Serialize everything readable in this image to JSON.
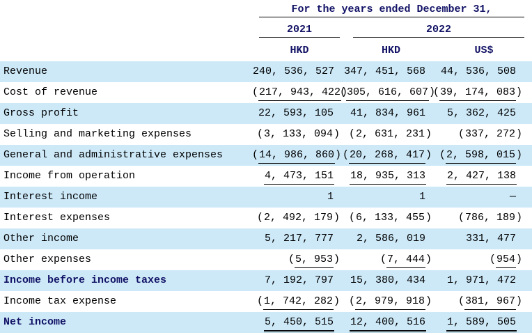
{
  "header": {
    "title": "For the years ended December 31,",
    "years": [
      "2021",
      "2022"
    ],
    "currencies": [
      "HKD",
      "HKD",
      "US$"
    ]
  },
  "table": {
    "rows": [
      {
        "label": "Revenue",
        "values": [
          "240, 536, 527",
          "347, 451, 568",
          "44, 536, 508"
        ],
        "bold": false,
        "underline": "none"
      },
      {
        "label": "Cost of revenue",
        "values": [
          "(217, 943, 422)",
          "(305, 616, 607)",
          "(39, 174, 083)"
        ],
        "bold": false,
        "underline": "single"
      },
      {
        "label": "Gross profit",
        "values": [
          "22, 593, 105",
          "41, 834, 961",
          "5, 362, 425"
        ],
        "bold": false,
        "underline": "none"
      },
      {
        "label": "Selling and marketing expenses",
        "values": [
          "(3, 133, 094)",
          "(2, 631, 231)",
          "(337, 272)"
        ],
        "bold": false,
        "underline": "none"
      },
      {
        "label": "General and administrative expenses",
        "values": [
          "(14, 986, 860)",
          "(20, 268, 417)",
          "(2, 598, 015)"
        ],
        "bold": false,
        "underline": "single"
      },
      {
        "label": "Income from operation",
        "values": [
          "4, 473, 151",
          "18, 935, 313",
          "2, 427, 138"
        ],
        "bold": false,
        "underline": "single"
      },
      {
        "label": "Interest income",
        "values": [
          "1",
          "1",
          "—"
        ],
        "bold": false,
        "underline": "none"
      },
      {
        "label": "Interest expenses",
        "values": [
          "(2, 492, 179)",
          "(6, 133, 455)",
          "(786, 189)"
        ],
        "bold": false,
        "underline": "none"
      },
      {
        "label": "Other income",
        "values": [
          "5, 217, 777",
          "2, 586, 019",
          "331, 477"
        ],
        "bold": false,
        "underline": "none"
      },
      {
        "label": "Other expenses",
        "values": [
          "(5, 953)",
          "(7, 444)",
          "(954)"
        ],
        "bold": false,
        "underline": "single"
      },
      {
        "label": "Income before income taxes",
        "values": [
          "7, 192, 797",
          "15, 380, 434",
          "1, 971, 472"
        ],
        "bold": true,
        "underline": "none"
      },
      {
        "label": "Income tax expense",
        "values": [
          "(1, 742, 282)",
          "(2, 979, 918)",
          "(381, 967)"
        ],
        "bold": false,
        "underline": "single"
      },
      {
        "label": "Net income",
        "values": [
          "5, 450, 515",
          "12, 400, 516",
          "1, 589, 505"
        ],
        "bold": true,
        "underline": "double"
      }
    ]
  },
  "colors": {
    "row_stripe": "#cde9f8",
    "accent_text": "#131366",
    "text": "#000000",
    "rule": "#000000"
  }
}
